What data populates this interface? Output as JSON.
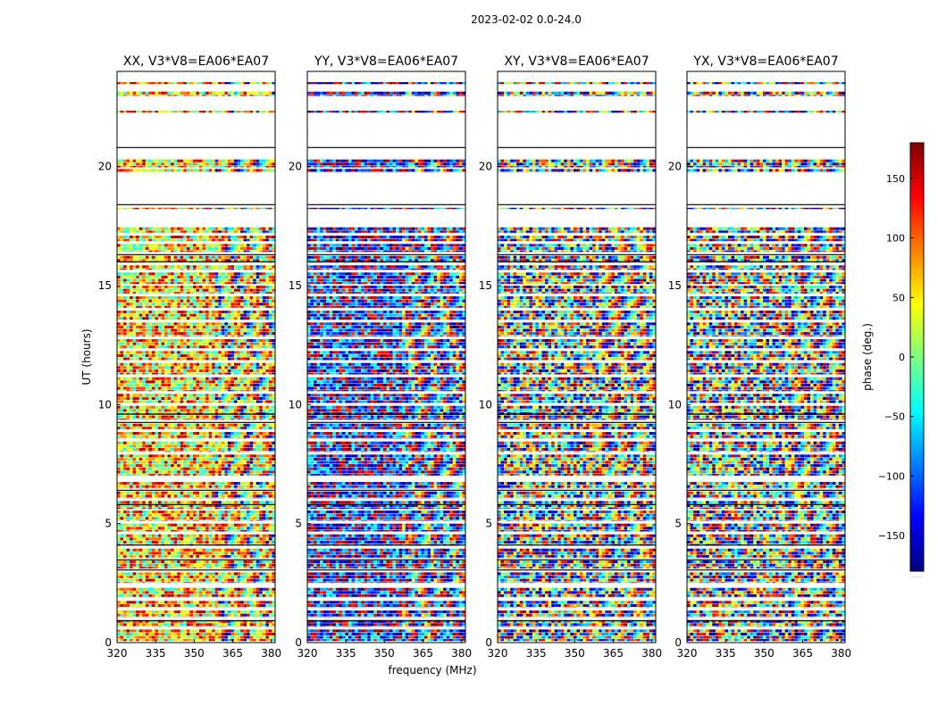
{
  "chart_data": {
    "type": "heatmap",
    "suptitle": "2023-02-02 0.0-24.0",
    "xlabel": "frequency (MHz)",
    "ylabel": "UT (hours)",
    "xlim": [
      320,
      381.5
    ],
    "ylim": [
      0,
      24
    ],
    "xticks": [
      320,
      335,
      350,
      365,
      380
    ],
    "yticks": [
      0,
      5,
      10,
      15,
      20
    ],
    "colorbar": {
      "label": "phase (deg.)",
      "range": [
        -180,
        180
      ],
      "ticks": [
        150,
        100,
        50,
        0,
        -50,
        -100,
        -150
      ],
      "tick_labels": [
        "150",
        "100",
        "50",
        "0",
        "−50",
        "−100",
        "−150"
      ],
      "colormap": "jet",
      "colors": [
        "#00007f",
        "#0000ff",
        "#007fff",
        "#00ffff",
        "#7fff7f",
        "#ffff00",
        "#ff7f00",
        "#ff0000",
        "#7f0000"
      ],
      "extension_note": "....."
    },
    "panels": [
      {
        "title": "XX, V3*V8=EA06*EA07",
        "bias_phase": 60,
        "spread": 110
      },
      {
        "title": "YY, V3*V8=EA06*EA07",
        "bias_phase": -135,
        "spread": 110
      },
      {
        "title": "XY, V3*V8=EA06*EA07",
        "bias_phase": 0,
        "spread": 180
      },
      {
        "title": "YX, V3*V8=EA06*EA07",
        "bias_phase": 0,
        "spread": 180
      }
    ],
    "data_bands_ut": [
      [
        0.05,
        0.55
      ],
      [
        0.65,
        0.95
      ],
      [
        1.05,
        1.35
      ],
      [
        1.45,
        1.75
      ],
      [
        1.9,
        2.3
      ],
      [
        2.5,
        2.95
      ],
      [
        3.1,
        3.45
      ],
      [
        3.55,
        3.95
      ],
      [
        4.05,
        4.55
      ],
      [
        4.65,
        5.0
      ],
      [
        5.1,
        5.55
      ],
      [
        5.6,
        5.95
      ],
      [
        6.05,
        6.35
      ],
      [
        6.45,
        6.75
      ],
      [
        7.0,
        7.9
      ],
      [
        8.0,
        8.45
      ],
      [
        8.55,
        8.85
      ],
      [
        8.95,
        9.2
      ],
      [
        9.35,
        9.95
      ],
      [
        10.05,
        10.45
      ],
      [
        10.55,
        11.15
      ],
      [
        11.25,
        11.75
      ],
      [
        11.85,
        12.25
      ],
      [
        12.35,
        12.75
      ],
      [
        12.85,
        13.45
      ],
      [
        13.55,
        13.95
      ],
      [
        14.05,
        14.55
      ],
      [
        14.65,
        15.0
      ],
      [
        15.05,
        15.55
      ],
      [
        15.65,
        15.85
      ],
      [
        15.95,
        16.25
      ],
      [
        16.4,
        16.75
      ],
      [
        16.85,
        17.1
      ],
      [
        17.2,
        17.45
      ],
      [
        18.2,
        18.27
      ],
      [
        19.75,
        19.9
      ],
      [
        19.95,
        20.3
      ],
      [
        22.25,
        22.35
      ],
      [
        22.95,
        23.15
      ],
      [
        23.45,
        23.55
      ]
    ],
    "black_lines_ut": [
      0.92,
      3.05,
      3.48,
      4.1,
      5.8,
      6.4,
      9.25,
      9.6,
      16.0,
      16.3,
      20.8,
      18.4
    ]
  }
}
